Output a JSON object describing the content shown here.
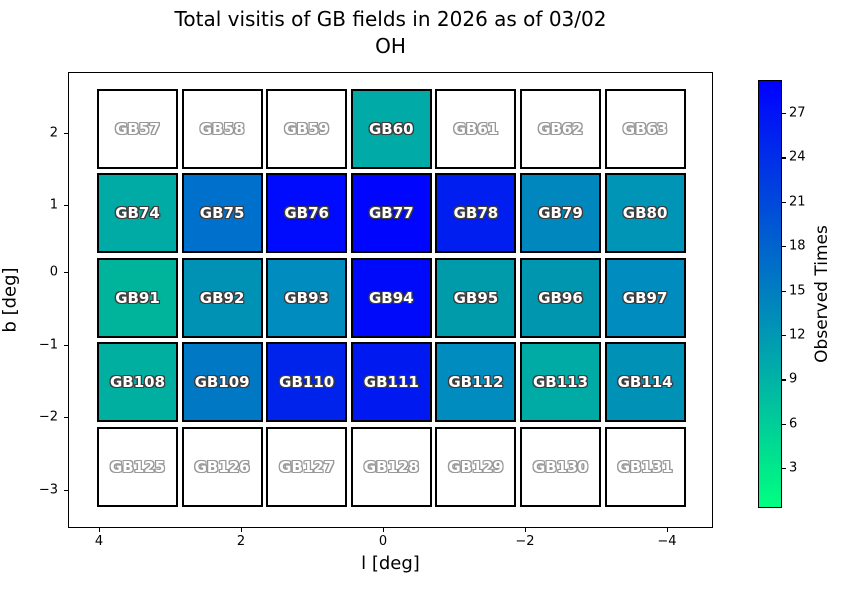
{
  "chart_data": {
    "type": "heatmap",
    "title": "Total visitis of GB fields in 2026 as of 03/02",
    "subtitle": "OH",
    "xlabel": "l [deg]",
    "ylabel": "b [deg]",
    "x_tick_labels": [
      "4",
      "2",
      "0",
      "−2",
      "−4"
    ],
    "y_tick_labels": [
      "2",
      "1",
      "0",
      "−1",
      "−2",
      "−3"
    ],
    "x_axis_reversed": true,
    "grid": false,
    "colormap": "winter_r (spring-green low to blue high); white = no visits",
    "colorbar": {
      "label": "Observed Times",
      "tick_values": [
        3,
        6,
        9,
        12,
        15,
        18,
        21,
        24,
        27
      ],
      "bottom_color": "#00FF80",
      "top_color": "#0000FF"
    },
    "rows": [
      {
        "b_center": 2.0,
        "cells": [
          {
            "label": "GB57",
            "observed_times_est": 0,
            "color": "#FFFFFF"
          },
          {
            "label": "GB58",
            "observed_times_est": 0,
            "color": "#FFFFFF"
          },
          {
            "label": "GB59",
            "observed_times_est": 0,
            "color": "#FFFFFF"
          },
          {
            "label": "GB60",
            "observed_times_est": 10,
            "color": "#00AAA6"
          },
          {
            "label": "GB61",
            "observed_times_est": 0,
            "color": "#FFFFFF"
          },
          {
            "label": "GB62",
            "observed_times_est": 0,
            "color": "#FFFFFF"
          },
          {
            "label": "GB63",
            "observed_times_est": 0,
            "color": "#FFFFFF"
          }
        ]
      },
      {
        "b_center": 0.8,
        "cells": [
          {
            "label": "GB74",
            "observed_times_est": 10,
            "color": "#00ABA5"
          },
          {
            "label": "GB75",
            "observed_times_est": 16,
            "color": "#0070CD"
          },
          {
            "label": "GB76",
            "observed_times_est": 28,
            "color": "#000AFC"
          },
          {
            "label": "GB77",
            "observed_times_est": 29,
            "color": "#0005FD"
          },
          {
            "label": "GB78",
            "observed_times_est": 26,
            "color": "#001EF0"
          },
          {
            "label": "GB79",
            "observed_times_est": 14,
            "color": "#0088BE"
          },
          {
            "label": "GB80",
            "observed_times_est": 12,
            "color": "#0094B7"
          }
        ]
      },
      {
        "b_center": -0.4,
        "cells": [
          {
            "label": "GB91",
            "observed_times_est": 9,
            "color": "#00B49B"
          },
          {
            "label": "GB92",
            "observed_times_est": 13,
            "color": "#0092B4"
          },
          {
            "label": "GB93",
            "observed_times_est": 13,
            "color": "#008CBE"
          },
          {
            "label": "GB94",
            "observed_times_est": 28,
            "color": "#000AFA"
          },
          {
            "label": "GB95",
            "observed_times_est": 12,
            "color": "#009BAA"
          },
          {
            "label": "GB96",
            "observed_times_est": 12,
            "color": "#0096AF"
          },
          {
            "label": "GB97",
            "observed_times_est": 13,
            "color": "#008CBE"
          }
        ]
      },
      {
        "b_center": -1.6,
        "cells": [
          {
            "label": "GB108",
            "observed_times_est": 9,
            "color": "#00AFA0"
          },
          {
            "label": "GB109",
            "observed_times_est": 16,
            "color": "#0078C3"
          },
          {
            "label": "GB110",
            "observed_times_est": 25,
            "color": "#0023EB"
          },
          {
            "label": "GB111",
            "observed_times_est": 26,
            "color": "#0019F0"
          },
          {
            "label": "GB112",
            "observed_times_est": 13,
            "color": "#008CBE"
          },
          {
            "label": "GB113",
            "observed_times_est": 10,
            "color": "#00AAA5"
          },
          {
            "label": "GB114",
            "observed_times_est": 13,
            "color": "#0091B6"
          }
        ]
      },
      {
        "b_center": -2.7,
        "cells": [
          {
            "label": "GB125",
            "observed_times_est": 0,
            "color": "#FFFFFF"
          },
          {
            "label": "GB126",
            "observed_times_est": 0,
            "color": "#FFFFFF"
          },
          {
            "label": "GB127",
            "observed_times_est": 0,
            "color": "#FFFFFF"
          },
          {
            "label": "GB128",
            "observed_times_est": 0,
            "color": "#FFFFFF"
          },
          {
            "label": "GB129",
            "observed_times_est": 0,
            "color": "#FFFFFF"
          },
          {
            "label": "GB130",
            "observed_times_est": 0,
            "color": "#FFFFFF"
          },
          {
            "label": "GB131",
            "observed_times_est": 0,
            "color": "#FFFFFF"
          }
        ]
      }
    ]
  }
}
